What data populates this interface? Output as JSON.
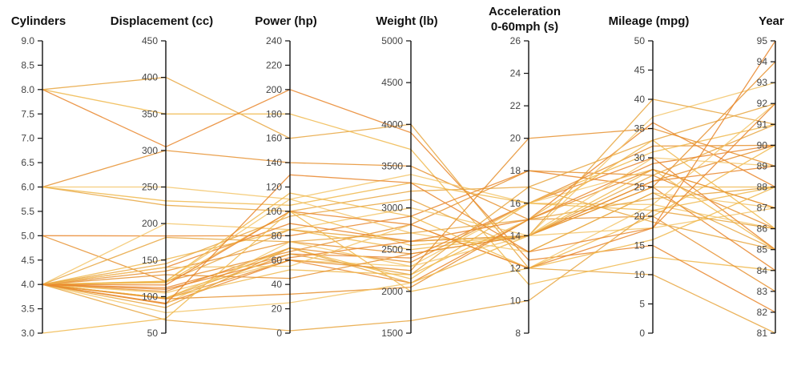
{
  "chart_data": {
    "type": "parallel-coordinates",
    "line_colors": [
      "#e8a640",
      "#f0b84c",
      "#e9862c",
      "#e6902f",
      "#f3c56a"
    ],
    "axes": [
      {
        "name": "Cylinders",
        "title": [
          "Cylinders"
        ],
        "min": 3,
        "max": 9,
        "ticks": [
          "3.0",
          "3.5",
          "4.0",
          "4.5",
          "5.0",
          "5.5",
          "6.0",
          "6.5",
          "7.0",
          "7.5",
          "8.0",
          "8.5",
          "9.0"
        ]
      },
      {
        "name": "Displacement",
        "title": [
          "Displacement (cc)"
        ],
        "min": 50,
        "max": 450,
        "ticks": [
          "50",
          "100",
          "150",
          "200",
          "250",
          "300",
          "350",
          "400",
          "450"
        ]
      },
      {
        "name": "Power",
        "title": [
          "Power (hp)"
        ],
        "min": 0,
        "max": 240,
        "ticks": [
          "0",
          "20",
          "40",
          "60",
          "80",
          "100",
          "120",
          "140",
          "160",
          "180",
          "200",
          "220",
          "240"
        ]
      },
      {
        "name": "Weight",
        "title": [
          "Weight (lb)"
        ],
        "min": 1500,
        "max": 5000,
        "ticks": [
          "1500",
          "2000",
          "2500",
          "3000",
          "3500",
          "4000",
          "4500",
          "5000"
        ]
      },
      {
        "name": "Acceleration",
        "title": [
          "Acceleration",
          "0-60mph (s)"
        ],
        "min": 8,
        "max": 26,
        "ticks": [
          "8",
          "10",
          "12",
          "14",
          "16",
          "18",
          "20",
          "22",
          "24",
          "26"
        ]
      },
      {
        "name": "Mileage",
        "title": [
          "Mileage (mpg)"
        ],
        "min": 0,
        "max": 50,
        "ticks": [
          "0",
          "5",
          "10",
          "15",
          "20",
          "25",
          "30",
          "35",
          "40",
          "45",
          "50"
        ]
      },
      {
        "name": "Year",
        "title": [
          "Year"
        ],
        "min": 81,
        "max": 95,
        "ticks": [
          "81",
          "82",
          "83",
          "84",
          "85",
          "86",
          "87",
          "88",
          "89",
          "90",
          "91",
          "92",
          "93",
          "94",
          "95"
        ]
      }
    ],
    "records": [
      [
        8,
        400,
        160,
        4000,
        12,
        10,
        81
      ],
      [
        8,
        350,
        180,
        3700,
        11,
        13,
        84
      ],
      [
        8,
        305,
        200,
        3900,
        12.5,
        15,
        82
      ],
      [
        6,
        300,
        140,
        3500,
        15,
        20,
        83
      ],
      [
        6,
        250,
        110,
        3400,
        16,
        22,
        86
      ],
      [
        6,
        225,
        100,
        3200,
        17,
        19,
        85
      ],
      [
        6,
        231,
        105,
        3300,
        16,
        21,
        88
      ],
      [
        5,
        183,
        80,
        2900,
        18,
        25,
        84
      ],
      [
        5,
        121,
        67,
        2800,
        18,
        27,
        86
      ],
      [
        4,
        200,
        85,
        3000,
        14,
        18,
        87
      ],
      [
        4,
        181,
        75,
        2700,
        15,
        23,
        88
      ],
      [
        4,
        151,
        85,
        2500,
        14,
        28,
        85
      ],
      [
        4,
        140,
        90,
        2600,
        14,
        26,
        89
      ],
      [
        4,
        135,
        75,
        2450,
        14,
        26,
        90
      ],
      [
        4,
        121,
        110,
        2700,
        13,
        24,
        87
      ],
      [
        4,
        120,
        85,
        2600,
        14,
        27,
        91
      ],
      [
        4,
        119,
        100,
        2550,
        14,
        25,
        88
      ],
      [
        4,
        112,
        65,
        2400,
        16,
        30,
        85
      ],
      [
        4,
        107,
        70,
        2350,
        16,
        32,
        90
      ],
      [
        4,
        105,
        60,
        2300,
        16,
        28,
        87
      ],
      [
        4,
        98,
        65,
        2200,
        17,
        33,
        92
      ],
      [
        4,
        98,
        70,
        2150,
        16,
        31,
        91
      ],
      [
        4,
        91,
        60,
        2100,
        15,
        36,
        88
      ],
      [
        4,
        97,
        60,
        2250,
        20,
        35,
        89
      ],
      [
        4,
        90,
        75,
        2300,
        14,
        37,
        93
      ],
      [
        4,
        85,
        70,
        2100,
        14,
        40,
        91
      ],
      [
        4,
        98,
        52,
        2200,
        15,
        33,
        86
      ],
      [
        4,
        110,
        62,
        2600,
        15,
        29,
        90
      ],
      [
        4,
        130,
        45,
        2450,
        14,
        25,
        94
      ],
      [
        4,
        140,
        55,
        2800,
        12,
        22,
        92
      ],
      [
        4,
        145,
        96,
        3100,
        13,
        24,
        85
      ],
      [
        4,
        121,
        115,
        2900,
        12,
        20,
        90
      ],
      [
        4,
        116,
        100,
        2800,
        12,
        18,
        92
      ],
      [
        4,
        97,
        32,
        2050,
        15,
        28,
        87
      ],
      [
        4,
        78,
        25,
        2100,
        14,
        30,
        89
      ],
      [
        4,
        68,
        2,
        1650,
        10,
        21,
        86
      ],
      [
        3,
        70,
        100,
        2000,
        12,
        16,
        88
      ],
      [
        4,
        90,
        130,
        3300,
        13,
        18,
        95
      ]
    ]
  }
}
